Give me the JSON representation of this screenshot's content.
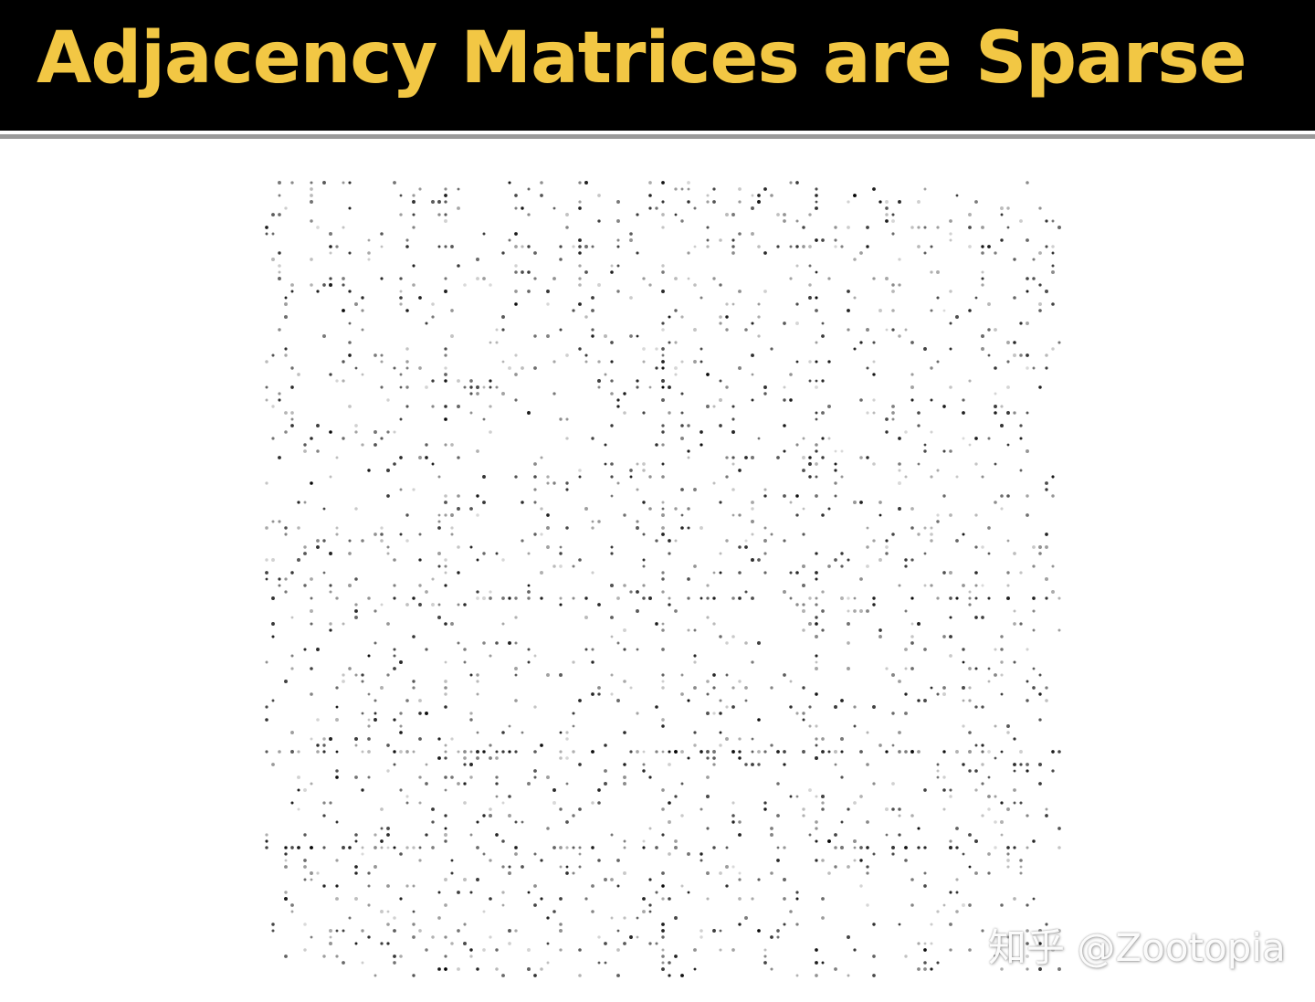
{
  "slide": {
    "title": "Adjacency Matrices are Sparse",
    "title_color": "#f2c744",
    "bar_color": "#000000"
  },
  "matrix": {
    "description_type": "sparse-adjacency-pattern",
    "dot_color": "#000000"
  },
  "watermark": {
    "text": "知乎 @Zootopia"
  }
}
